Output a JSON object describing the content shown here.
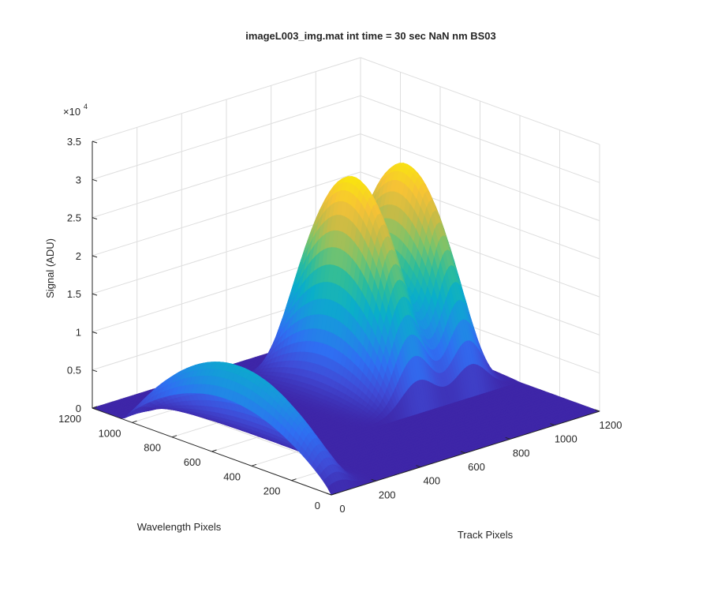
{
  "chart_data": {
    "type": "surface",
    "title": "imageL003_img.mat int time = 30 sec  NaN nm BS03",
    "xlabel": "Track Pixels",
    "ylabel": "Wavelength Pixels",
    "zlabel": "Signal (ADU)",
    "z_exponent_label": "×10",
    "z_exponent_power": "4",
    "xlim": [
      0,
      1200
    ],
    "ylim": [
      0,
      1200
    ],
    "zlim": [
      0,
      35000
    ],
    "x_ticks": [
      "0",
      "200",
      "400",
      "600",
      "800",
      "1000",
      "1200"
    ],
    "y_ticks": [
      "0",
      "200",
      "400",
      "600",
      "800",
      "1000",
      "1200"
    ],
    "z_ticks": [
      "0",
      "0.5",
      "1",
      "1.5",
      "2",
      "2.5",
      "3",
      "3.5"
    ],
    "grid": true,
    "colormap": [
      "#3e26a8",
      "#3f4cd7",
      "#2f6ff2",
      "#1a93e0",
      "#0aaec9",
      "#2cbc9c",
      "#7cc36a",
      "#c6bb47",
      "#f6c236",
      "#f9e50f"
    ],
    "peaks": [
      {
        "track_center": 50,
        "track_width": 55,
        "wavelength_range": [
          0,
          1200
        ],
        "peak_signal": 11500
      },
      {
        "track_center": 765,
        "track_width": 75,
        "wavelength_range": [
          400,
          1200
        ],
        "peak_signal": 27500
      },
      {
        "track_center": 1000,
        "track_width": 70,
        "wavelength_range": [
          400,
          1200
        ],
        "peak_signal": 27000
      }
    ],
    "baseline_signal": 0
  }
}
